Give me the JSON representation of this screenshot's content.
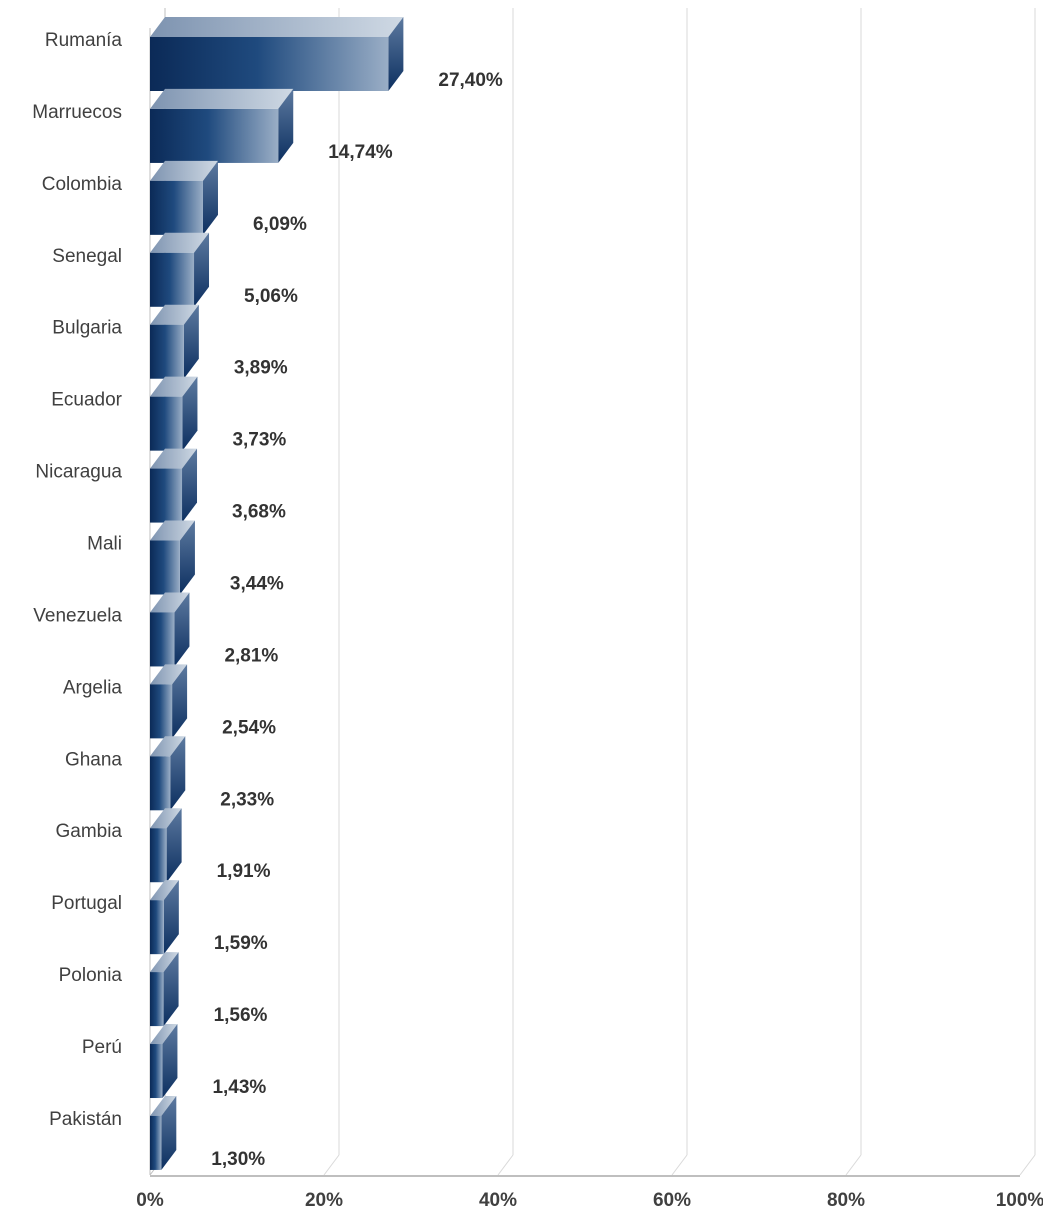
{
  "chart_data": {
    "type": "bar",
    "orientation": "horizontal",
    "style": "3d",
    "categories": [
      "Rumanía",
      "Marruecos",
      "Colombia",
      "Senegal",
      "Bulgaria",
      "Ecuador",
      "Nicaragua",
      "Mali",
      "Venezuela",
      "Argelia",
      "Ghana",
      "Gambia",
      "Portugal",
      "Polonia",
      "Perú",
      "Pakistán"
    ],
    "values": [
      27.4,
      14.74,
      6.09,
      5.06,
      3.89,
      3.73,
      3.68,
      3.44,
      2.81,
      2.54,
      2.33,
      1.91,
      1.59,
      1.56,
      1.43,
      1.3
    ],
    "value_labels": [
      "27,40%",
      "14,74%",
      "6,09%",
      "5,06%",
      "3,89%",
      "3,73%",
      "3,68%",
      "3,44%",
      "2,81%",
      "2,54%",
      "2,33%",
      "1,91%",
      "1,59%",
      "1,56%",
      "1,43%",
      "1,30%"
    ],
    "x_ticks": [
      0,
      20,
      40,
      60,
      80,
      100
    ],
    "x_tick_labels": [
      "0%",
      "20%",
      "40%",
      "60%",
      "80%",
      "100%"
    ],
    "xlim": [
      0,
      100
    ],
    "title": "",
    "xlabel": "",
    "ylabel": "",
    "grid": true,
    "legend": "none",
    "colors": {
      "bar_dark": "#0d2d5c",
      "bar_light": "#8fa3bd",
      "bar_top": "#b4c3d4",
      "bar_side": "#0f3a6e",
      "grid": "#d9d9d9",
      "axis": "#bfbfbf"
    }
  }
}
